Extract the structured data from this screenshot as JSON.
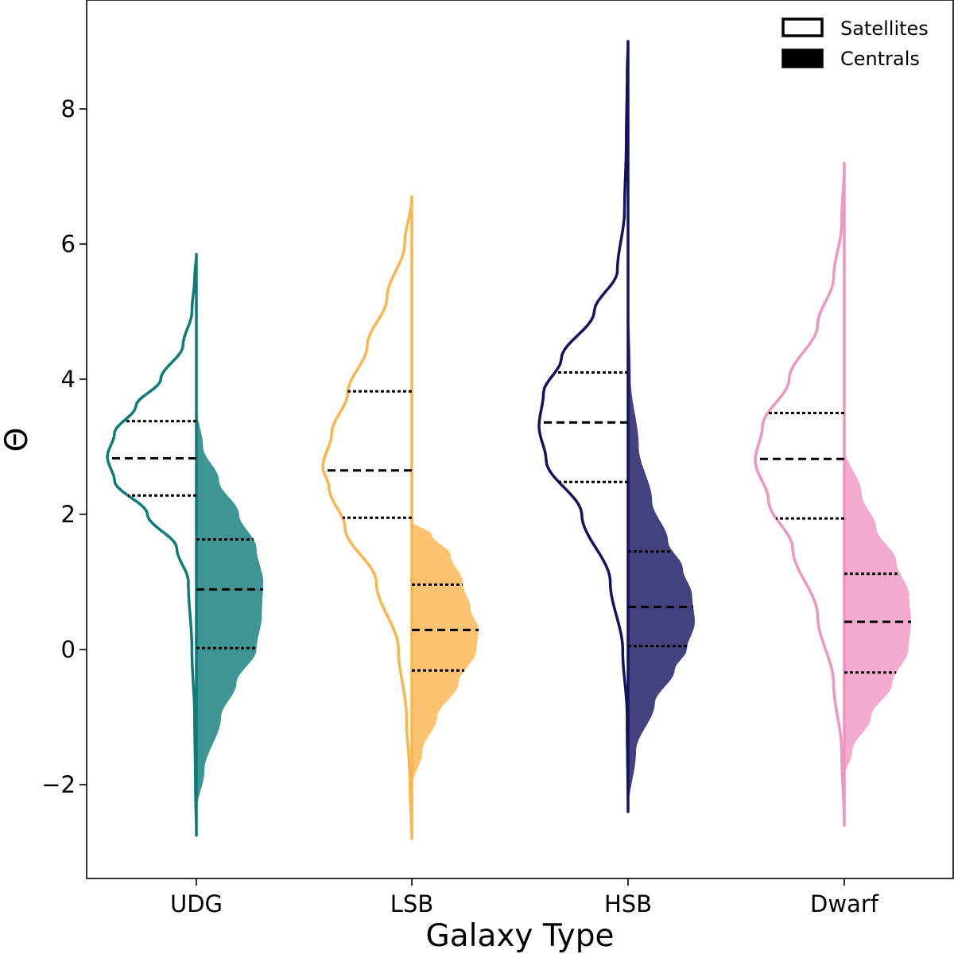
{
  "chart_data": {
    "type": "split-violin",
    "title": "",
    "xlabel": "Galaxy Type",
    "ylabel": "Θ",
    "ylim": [
      -3.35,
      9.65
    ],
    "yticks": [
      -2,
      0,
      2,
      4,
      6,
      8
    ],
    "ytick_labels": [
      "−2",
      "0",
      "2",
      "4",
      "6",
      "8"
    ],
    "categories": [
      "UDG",
      "LSB",
      "HSB",
      "Dwarf"
    ],
    "grid": false,
    "legend": {
      "placement": "top-right",
      "entries": [
        {
          "label": "Satellites",
          "style": "outline"
        },
        {
          "label": "Centrals",
          "style": "filled"
        }
      ]
    },
    "colors": {
      "UDG": "#0f7b78",
      "LSB": "#fdb44d",
      "HSB": "#14135f",
      "Dwarf": "#ef95c2"
    },
    "series": [
      {
        "name": "Satellites",
        "side": "left",
        "style": "outline",
        "groups": [
          {
            "category": "UDG",
            "min": -2.75,
            "max": 5.85,
            "q1": 2.28,
            "median": 2.83,
            "q3": 3.38,
            "density_profile": [
              [
                -2.75,
                0.0
              ],
              [
                -2.0,
                0.01
              ],
              [
                -1.0,
                0.02
              ],
              [
                0.0,
                0.05
              ],
              [
                1.0,
                0.09
              ],
              [
                1.5,
                0.22
              ],
              [
                2.0,
                0.55
              ],
              [
                2.5,
                0.92
              ],
              [
                2.85,
                1.0
              ],
              [
                3.2,
                0.92
              ],
              [
                3.6,
                0.68
              ],
              [
                4.0,
                0.4
              ],
              [
                4.5,
                0.15
              ],
              [
                5.0,
                0.05
              ],
              [
                5.5,
                0.02
              ],
              [
                5.85,
                0.0
              ]
            ]
          },
          {
            "category": "LSB",
            "min": -2.8,
            "max": 6.7,
            "q1": 1.95,
            "median": 2.65,
            "q3": 3.82,
            "density_profile": [
              [
                -2.8,
                0.0
              ],
              [
                -2.0,
                0.02
              ],
              [
                -1.0,
                0.06
              ],
              [
                0.0,
                0.15
              ],
              [
                1.0,
                0.4
              ],
              [
                1.8,
                0.75
              ],
              [
                2.4,
                0.93
              ],
              [
                2.7,
                1.0
              ],
              [
                3.2,
                0.9
              ],
              [
                3.8,
                0.72
              ],
              [
                4.5,
                0.5
              ],
              [
                5.2,
                0.28
              ],
              [
                6.0,
                0.08
              ],
              [
                6.7,
                0.0
              ]
            ]
          },
          {
            "category": "HSB",
            "min": -2.4,
            "max": 9.0,
            "q1": 2.48,
            "median": 3.36,
            "q3": 4.1,
            "density_profile": [
              [
                -2.4,
                0.0
              ],
              [
                -1.0,
                0.01
              ],
              [
                0.0,
                0.06
              ],
              [
                1.0,
                0.2
              ],
              [
                2.0,
                0.52
              ],
              [
                2.8,
                0.92
              ],
              [
                3.3,
                1.0
              ],
              [
                3.8,
                0.95
              ],
              [
                4.3,
                0.75
              ],
              [
                5.0,
                0.38
              ],
              [
                5.6,
                0.12
              ],
              [
                6.5,
                0.04
              ],
              [
                7.5,
                0.02
              ],
              [
                8.5,
                0.01
              ],
              [
                9.0,
                0.0
              ]
            ]
          },
          {
            "category": "Dwarf",
            "min": -2.6,
            "max": 7.2,
            "q1": 1.94,
            "median": 2.82,
            "q3": 3.5,
            "density_profile": [
              [
                -2.6,
                0.0
              ],
              [
                -1.5,
                0.03
              ],
              [
                -0.5,
                0.12
              ],
              [
                0.5,
                0.3
              ],
              [
                1.5,
                0.58
              ],
              [
                2.2,
                0.85
              ],
              [
                2.8,
                1.0
              ],
              [
                3.3,
                0.92
              ],
              [
                4.0,
                0.62
              ],
              [
                4.8,
                0.3
              ],
              [
                5.5,
                0.12
              ],
              [
                6.3,
                0.03
              ],
              [
                7.2,
                0.0
              ]
            ]
          }
        ]
      },
      {
        "name": "Centrals",
        "side": "right",
        "style": "filled",
        "groups": [
          {
            "category": "UDG",
            "min": -2.4,
            "max": 3.6,
            "q1": 0.02,
            "median": 0.89,
            "q3": 1.63,
            "density_profile": [
              [
                -2.4,
                0.0
              ],
              [
                -1.8,
                0.12
              ],
              [
                -1.0,
                0.37
              ],
              [
                -0.5,
                0.6
              ],
              [
                0.0,
                0.9
              ],
              [
                0.5,
                0.98
              ],
              [
                1.0,
                1.0
              ],
              [
                1.5,
                0.9
              ],
              [
                2.0,
                0.64
              ],
              [
                2.5,
                0.34
              ],
              [
                3.0,
                0.1
              ],
              [
                3.6,
                0.0
              ]
            ]
          },
          {
            "category": "LSB",
            "min": -2.05,
            "max": 1.9,
            "q1": -0.31,
            "median": 0.29,
            "q3": 0.96,
            "density_profile": [
              [
                -2.05,
                0.0
              ],
              [
                -1.5,
                0.16
              ],
              [
                -1.0,
                0.38
              ],
              [
                -0.5,
                0.7
              ],
              [
                0.0,
                0.97
              ],
              [
                0.3,
                1.0
              ],
              [
                0.6,
                0.88
              ],
              [
                1.0,
                0.76
              ],
              [
                1.4,
                0.58
              ],
              [
                1.7,
                0.3
              ],
              [
                1.9,
                0.0
              ]
            ]
          },
          {
            "category": "HSB",
            "min": -2.4,
            "max": 5.6,
            "q1": 0.05,
            "median": 0.63,
            "q3": 1.45,
            "density_profile": [
              [
                -2.4,
                0.0
              ],
              [
                -1.5,
                0.12
              ],
              [
                -0.8,
                0.4
              ],
              [
                -0.3,
                0.7
              ],
              [
                0.0,
                0.88
              ],
              [
                0.4,
                1.0
              ],
              [
                0.8,
                0.96
              ],
              [
                1.2,
                0.82
              ],
              [
                1.6,
                0.6
              ],
              [
                2.2,
                0.36
              ],
              [
                3.0,
                0.16
              ],
              [
                4.0,
                0.04
              ],
              [
                5.6,
                0.0
              ]
            ]
          },
          {
            "category": "Dwarf",
            "min": -1.9,
            "max": 3.0,
            "q1": -0.34,
            "median": 0.41,
            "q3": 1.12,
            "density_profile": [
              [
                -1.9,
                0.0
              ],
              [
                -1.5,
                0.12
              ],
              [
                -1.0,
                0.4
              ],
              [
                -0.5,
                0.72
              ],
              [
                0.0,
                0.96
              ],
              [
                0.4,
                1.0
              ],
              [
                0.8,
                0.97
              ],
              [
                1.3,
                0.78
              ],
              [
                1.8,
                0.48
              ],
              [
                2.3,
                0.26
              ],
              [
                3.0,
                0.0
              ]
            ]
          }
        ]
      }
    ]
  }
}
